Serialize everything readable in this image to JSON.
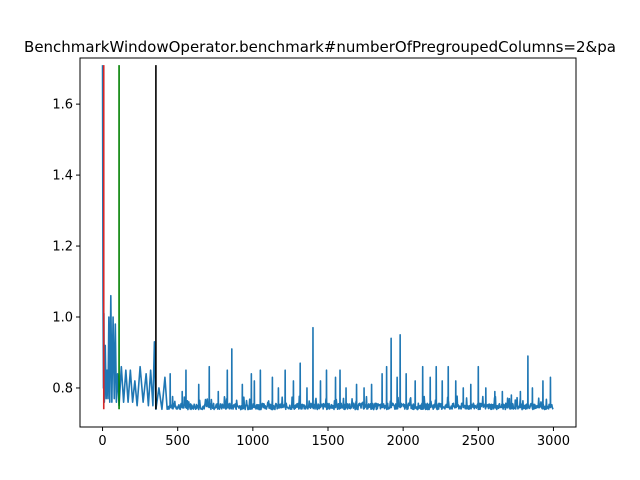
{
  "chart_data": {
    "type": "line",
    "title": "BenchmarkWindowOperator.benchmark#numberOfPregroupedColumns=2&pa",
    "xlabel": "",
    "ylabel": "",
    "xlim": [
      -150,
      3150
    ],
    "ylim": [
      0.69,
      1.73
    ],
    "xticks": [
      0,
      500,
      1000,
      1500,
      2000,
      2500,
      3000
    ],
    "yticks": [
      0.8,
      1.0,
      1.2,
      1.4,
      1.6
    ],
    "xtick_labels": [
      "0",
      "500",
      "1000",
      "1500",
      "2000",
      "2500",
      "3000"
    ],
    "ytick_labels": [
      "0.8",
      "1.0",
      "1.2",
      "1.4",
      "1.6"
    ],
    "grid": false,
    "series": [
      {
        "color": "#1f77b4",
        "baseline": 0.745,
        "points": [
          [
            0,
            1.71
          ],
          [
            3,
            1.05
          ],
          [
            6,
            0.8
          ],
          [
            9,
            1.01
          ],
          [
            12,
            0.76
          ],
          [
            18,
            0.92
          ],
          [
            24,
            0.77
          ],
          [
            30,
            0.85
          ],
          [
            36,
            0.77
          ],
          [
            42,
            1.0
          ],
          [
            48,
            0.76
          ],
          [
            55,
            1.06
          ],
          [
            62,
            0.76
          ],
          [
            70,
            1.0
          ],
          [
            78,
            0.77
          ],
          [
            85,
            0.98
          ],
          [
            92,
            0.76
          ],
          [
            100,
            0.84
          ],
          [
            110,
            0.75
          ],
          [
            125,
            0.86
          ],
          [
            140,
            0.76
          ],
          [
            155,
            0.85
          ],
          [
            170,
            0.76
          ],
          [
            185,
            0.85
          ],
          [
            200,
            0.76
          ],
          [
            215,
            0.82
          ],
          [
            230,
            0.75
          ],
          [
            250,
            0.86
          ],
          [
            270,
            0.76
          ],
          [
            290,
            0.84
          ],
          [
            305,
            0.75
          ],
          [
            320,
            0.85
          ],
          [
            335,
            0.75
          ],
          [
            345,
            0.93
          ],
          [
            355,
            0.74
          ],
          [
            375,
            0.8
          ],
          [
            395,
            0.74
          ],
          [
            415,
            0.83
          ],
          [
            430,
            0.74
          ]
        ],
        "spikes": [
          [
            450,
            0.84
          ],
          [
            530,
            0.79
          ],
          [
            555,
            0.85
          ],
          [
            640,
            0.81
          ],
          [
            710,
            0.86
          ],
          [
            770,
            0.79
          ],
          [
            830,
            0.85
          ],
          [
            860,
            0.91
          ],
          [
            930,
            0.81
          ],
          [
            990,
            0.84
          ],
          [
            1010,
            0.82
          ],
          [
            1050,
            0.85
          ],
          [
            1130,
            0.83
          ],
          [
            1170,
            0.8
          ],
          [
            1215,
            0.85
          ],
          [
            1270,
            0.82
          ],
          [
            1315,
            0.87
          ],
          [
            1360,
            0.8
          ],
          [
            1400,
            0.97
          ],
          [
            1450,
            0.82
          ],
          [
            1490,
            0.85
          ],
          [
            1550,
            0.83
          ],
          [
            1580,
            0.85
          ],
          [
            1620,
            0.8
          ],
          [
            1690,
            0.81
          ],
          [
            1740,
            0.8
          ],
          [
            1790,
            0.81
          ],
          [
            1860,
            0.84
          ],
          [
            1890,
            0.86
          ],
          [
            1920,
            0.94
          ],
          [
            1960,
            0.83
          ],
          [
            1980,
            0.95
          ],
          [
            2020,
            0.84
          ],
          [
            2080,
            0.82
          ],
          [
            2130,
            0.86
          ],
          [
            2180,
            0.83
          ],
          [
            2220,
            0.86
          ],
          [
            2260,
            0.82
          ],
          [
            2300,
            0.86
          ],
          [
            2350,
            0.82
          ],
          [
            2400,
            0.8
          ],
          [
            2450,
            0.81
          ],
          [
            2500,
            0.86
          ],
          [
            2550,
            0.8
          ],
          [
            2610,
            0.79
          ],
          [
            2660,
            0.79
          ],
          [
            2720,
            0.78
          ],
          [
            2780,
            0.79
          ],
          [
            2830,
            0.89
          ],
          [
            2860,
            0.8
          ],
          [
            2930,
            0.82
          ],
          [
            2980,
            0.83
          ]
        ]
      }
    ],
    "vlines": [
      {
        "x": 8,
        "ymin": 0.74,
        "ymax": 1.71,
        "color": "#d62728"
      },
      {
        "x": 110,
        "ymin": 0.74,
        "ymax": 1.71,
        "color": "#008000"
      },
      {
        "x": 355,
        "ymin": 0.74,
        "ymax": 1.71,
        "color": "#000000"
      }
    ]
  }
}
